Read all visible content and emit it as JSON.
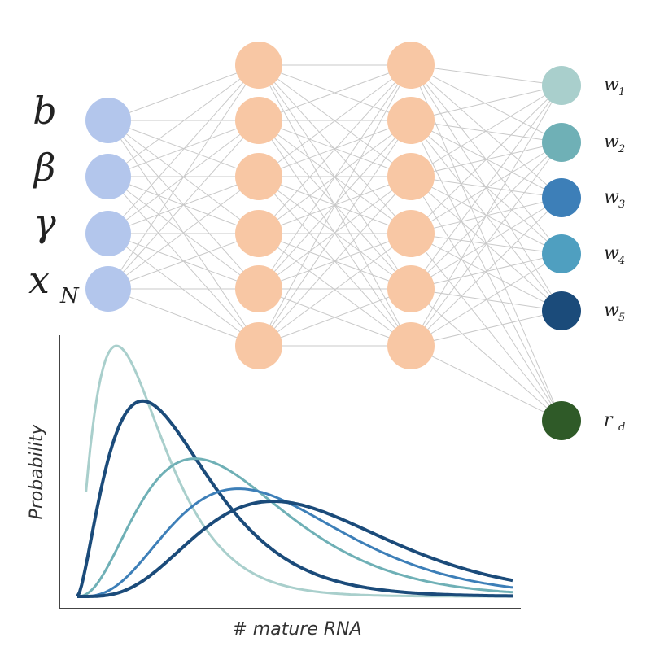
{
  "network": {
    "inputs": [
      {
        "label": "b",
        "color": "#b3c6ec"
      },
      {
        "label": "β",
        "color": "#b3c6ec"
      },
      {
        "label": "γ",
        "color": "#b3c6ec"
      },
      {
        "label": "x",
        "sub": "N",
        "color": "#b3c6ec"
      }
    ],
    "hidden_layers": [
      {
        "nodes": 6,
        "color": "#f8c7a4"
      },
      {
        "nodes": 6,
        "color": "#f8c7a4"
      }
    ],
    "outputs": [
      {
        "label": "w",
        "sub": "1",
        "color": "#a9cfcc"
      },
      {
        "label": "w",
        "sub": "2",
        "color": "#6fb0b6"
      },
      {
        "label": "w",
        "sub": "3",
        "color": "#3d7fb8"
      },
      {
        "label": "w",
        "sub": "4",
        "color": "#4f9fc0"
      },
      {
        "label": "w",
        "sub": "5",
        "color": "#1b4b7a"
      },
      {
        "label": "r",
        "sub": "d",
        "color": "#2f5a28"
      }
    ],
    "edge_color": "#c9c9c9"
  },
  "chart_data": {
    "type": "line",
    "xlabel": "# mature RNA",
    "ylabel": "Probability",
    "series": [
      {
        "color": "#a9cfcc",
        "peak_x": 0.09,
        "shape": 2.2,
        "height": 1.0
      },
      {
        "color": "#1b4b7a",
        "peak_x": 0.15,
        "shape": 2.6,
        "height": 0.78
      },
      {
        "color": "#6fb0b6",
        "peak_x": 0.27,
        "shape": 3.5,
        "height": 0.55
      },
      {
        "color": "#3d7fb8",
        "peak_x": 0.37,
        "shape": 4.5,
        "height": 0.43
      },
      {
        "color": "#1b4b7a",
        "peak_x": 0.45,
        "shape": 5.2,
        "height": 0.38
      }
    ]
  }
}
